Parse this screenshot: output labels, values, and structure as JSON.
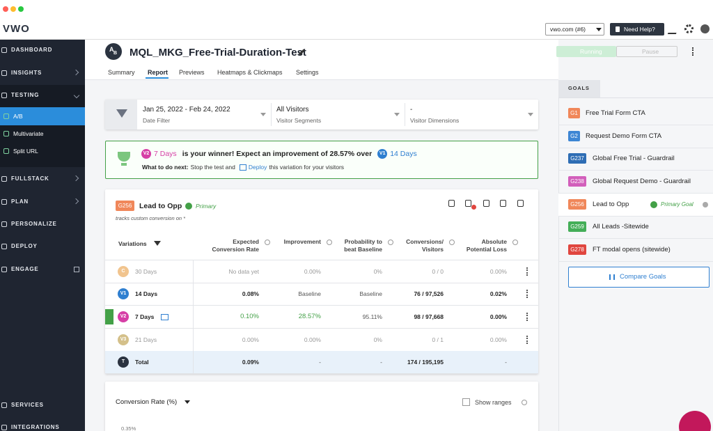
{
  "window": {
    "logo": "VWO",
    "account": "vwo.com (#6)",
    "help": "Need Help?"
  },
  "sidebar": {
    "items": [
      "DASHBOARD",
      "INSIGHTS",
      "TESTING"
    ],
    "submenu": [
      "A/B",
      "Multivariate",
      "Split URL"
    ],
    "more": [
      "FULLSTACK",
      "PLAN",
      "PERSONALIZE",
      "DEPLOY",
      "ENGAGE"
    ],
    "bottom": [
      "SERVICES",
      "INTEGRATIONS"
    ]
  },
  "header": {
    "icon": [
      "A",
      "B"
    ],
    "title": "MQL_MKG_Free-Trial-Duration-Test",
    "running": "Running",
    "pause": "Pause",
    "tabs": [
      "Summary",
      "Report",
      "Previews",
      "Heatmaps & Clickmaps",
      "Settings"
    ]
  },
  "filters": [
    {
      "value": "Jan 25, 2022 - Feb 24, 2022",
      "label": "Date Filter"
    },
    {
      "value": "All Visitors",
      "label": "Visitor Segments"
    },
    {
      "value": "-",
      "label": "Visitor Dimensions"
    }
  ],
  "winner": {
    "badge": "V2",
    "name": "7 Days",
    "text": "is your winner! Expect an improvement of 28.57% over",
    "base_badge": "V1",
    "base_name": "14 Days",
    "next_label": "What to do next:",
    "next_text": "Stop the test and",
    "deploy": "Deploy",
    "next_end": "this variation for your visitors"
  },
  "report": {
    "goal_badge": "G256",
    "goal": "Lead to Opp",
    "primary": "Primary",
    "description": "tracks custom conversion on *",
    "columns": [
      "Variations",
      "Expected Conversion Rate",
      "Improvement",
      "Probability to beat Baseline",
      "Conversions/ Visitors",
      "Absolute Potential Loss"
    ],
    "rows": [
      {
        "badge": "C",
        "name": "30 Days",
        "cells": [
          "No data yet",
          "0.00%",
          "0%",
          "0 / 0",
          "0.00%"
        ]
      },
      {
        "badge": "V1",
        "name": "14 Days",
        "cells": [
          "0.08%",
          "Baseline",
          "Baseline",
          "76 / 97,526",
          "0.02%"
        ]
      },
      {
        "badge": "V2",
        "name": "7 Days",
        "cells": [
          "0.10%",
          "28.57%",
          "95.11%",
          "98 / 97,668",
          "0.00%"
        ]
      },
      {
        "badge": "V3",
        "name": "21 Days",
        "cells": [
          "0.00%",
          "0.00%",
          "0%",
          "0 / 1",
          "0.00%"
        ]
      },
      {
        "badge": "T",
        "name": "Total",
        "cells": [
          "0.09%",
          "-",
          "-",
          "174 / 195,195",
          "-"
        ]
      }
    ]
  },
  "chart": {
    "title": "Conversion Rate (%)",
    "show_ranges": "Show ranges",
    "tick": "0.35%"
  },
  "goals": {
    "tab": "GOALS",
    "items": [
      {
        "badge": "G1",
        "name": "Free Trial Form CTA",
        "color": "#f0875a"
      },
      {
        "badge": "G2",
        "name": "Request Demo Form CTA",
        "color": "#3d86d4"
      },
      {
        "badge": "G237",
        "name": "Global Free Trial - Guardrail",
        "color": "#2e6db4"
      },
      {
        "badge": "G238",
        "name": "Global Request Demo - Guardrail",
        "color": "#d25fbb"
      },
      {
        "badge": "G256",
        "name": "Lead to Opp",
        "color": "#f0875a"
      },
      {
        "badge": "G259",
        "name": "All Leads -Sitewide",
        "color": "#44ae58"
      },
      {
        "badge": "G278",
        "name": "FT modal opens (sitewide)",
        "color": "#e0463f"
      }
    ],
    "primary_goal": "Primary Goal",
    "compare": "Compare Goals"
  }
}
